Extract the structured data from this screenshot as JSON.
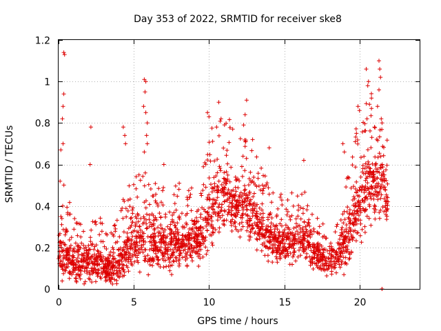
{
  "chart_data": {
    "type": "scatter",
    "title": "Day 353 of 2022, SRMTID for receiver ske8",
    "xlabel": "GPS time / hours",
    "ylabel": "SRMTID / TECUs",
    "xlim": [
      0,
      24
    ],
    "ylim": [
      0,
      1.2
    ],
    "x_ticks": [
      0,
      5,
      10,
      15,
      20
    ],
    "x_tick_labels": [
      "0",
      "5",
      "10",
      "15",
      "20"
    ],
    "y_ticks": [
      0,
      0.2,
      0.4,
      0.6,
      0.8,
      1,
      1.2
    ],
    "y_tick_labels": [
      "0",
      "0.2",
      "0.4",
      "0.6",
      "0.8",
      "1",
      "1.2"
    ],
    "grid": true,
    "marker": "+",
    "color": "#dd0000",
    "profile_hours": [
      0,
      0.5,
      1,
      1.5,
      2,
      2.5,
      3,
      3.5,
      4,
      4.5,
      5,
      5.5,
      6,
      6.5,
      7,
      7.5,
      8,
      8.5,
      9,
      9.5,
      10,
      10.5,
      11,
      11.5,
      12,
      12.5,
      13,
      13.5,
      14,
      14.5,
      15,
      15.5,
      16,
      16.5,
      17,
      17.5,
      18,
      18.5,
      19,
      19.5,
      20,
      20.5,
      21,
      21.5,
      21.9
    ],
    "profile_median": [
      0.2,
      0.17,
      0.13,
      0.12,
      0.14,
      0.13,
      0.11,
      0.1,
      0.12,
      0.18,
      0.22,
      0.22,
      0.24,
      0.22,
      0.2,
      0.22,
      0.23,
      0.22,
      0.24,
      0.25,
      0.35,
      0.42,
      0.45,
      0.42,
      0.4,
      0.38,
      0.35,
      0.3,
      0.25,
      0.22,
      0.22,
      0.22,
      0.24,
      0.22,
      0.18,
      0.15,
      0.14,
      0.15,
      0.2,
      0.32,
      0.42,
      0.48,
      0.52,
      0.5,
      0.42
    ],
    "profile_spread": [
      0.15,
      0.14,
      0.1,
      0.09,
      0.11,
      0.1,
      0.09,
      0.08,
      0.1,
      0.13,
      0.14,
      0.14,
      0.15,
      0.13,
      0.12,
      0.12,
      0.12,
      0.12,
      0.12,
      0.13,
      0.16,
      0.18,
      0.17,
      0.16,
      0.15,
      0.15,
      0.14,
      0.12,
      0.11,
      0.1,
      0.1,
      0.11,
      0.12,
      0.11,
      0.08,
      0.07,
      0.07,
      0.08,
      0.12,
      0.15,
      0.18,
      0.2,
      0.22,
      0.2,
      0.15
    ],
    "highlight_points": [
      {
        "x": 0.35,
        "y": 1.14
      },
      {
        "x": 0.4,
        "y": 1.13
      },
      {
        "x": 0.35,
        "y": 0.94
      },
      {
        "x": 0.3,
        "y": 0.88
      },
      {
        "x": 0.25,
        "y": 0.82
      },
      {
        "x": 0.15,
        "y": 0.67
      },
      {
        "x": 0.3,
        "y": 0.7
      },
      {
        "x": 2.15,
        "y": 0.78
      },
      {
        "x": 2.1,
        "y": 0.6
      },
      {
        "x": 4.3,
        "y": 0.78
      },
      {
        "x": 4.4,
        "y": 0.74
      },
      {
        "x": 4.45,
        "y": 0.7
      },
      {
        "x": 5.7,
        "y": 1.01
      },
      {
        "x": 5.8,
        "y": 1.0
      },
      {
        "x": 5.75,
        "y": 0.95
      },
      {
        "x": 5.65,
        "y": 0.88
      },
      {
        "x": 5.8,
        "y": 0.85
      },
      {
        "x": 5.9,
        "y": 0.8
      },
      {
        "x": 5.85,
        "y": 0.74
      },
      {
        "x": 5.9,
        "y": 0.7
      },
      {
        "x": 5.7,
        "y": 0.66
      },
      {
        "x": 7.0,
        "y": 0.6
      },
      {
        "x": 9.9,
        "y": 0.85
      },
      {
        "x": 10.0,
        "y": 0.83
      },
      {
        "x": 10.65,
        "y": 0.9
      },
      {
        "x": 10.8,
        "y": 0.82
      },
      {
        "x": 10.5,
        "y": 0.78
      },
      {
        "x": 12.5,
        "y": 0.91
      },
      {
        "x": 12.4,
        "y": 0.84
      },
      {
        "x": 12.3,
        "y": 0.79
      },
      {
        "x": 12.9,
        "y": 0.72
      },
      {
        "x": 14.0,
        "y": 0.68
      },
      {
        "x": 16.3,
        "y": 0.62
      },
      {
        "x": 18.9,
        "y": 0.7
      },
      {
        "x": 19.0,
        "y": 0.66
      },
      {
        "x": 19.8,
        "y": 0.75
      },
      {
        "x": 19.9,
        "y": 0.88
      },
      {
        "x": 20.0,
        "y": 0.86
      },
      {
        "x": 20.5,
        "y": 0.82
      },
      {
        "x": 20.55,
        "y": 0.98
      },
      {
        "x": 20.6,
        "y": 1.0
      },
      {
        "x": 20.45,
        "y": 1.06
      },
      {
        "x": 20.8,
        "y": 0.92
      },
      {
        "x": 21.0,
        "y": 0.78
      },
      {
        "x": 21.2,
        "y": 0.88
      },
      {
        "x": 21.3,
        "y": 1.1
      },
      {
        "x": 21.35,
        "y": 1.06
      },
      {
        "x": 21.4,
        "y": 1.02
      },
      {
        "x": 21.3,
        "y": 0.96
      },
      {
        "x": 21.45,
        "y": 0.82
      },
      {
        "x": 21.5,
        "y": 0.8
      },
      {
        "x": 21.5,
        "y": 0.0
      },
      {
        "x": 21.5,
        "y": 0.0
      },
      {
        "x": 21.8,
        "y": 0.38
      },
      {
        "x": 21.9,
        "y": 0.42
      }
    ],
    "points_per_hour": 110
  }
}
